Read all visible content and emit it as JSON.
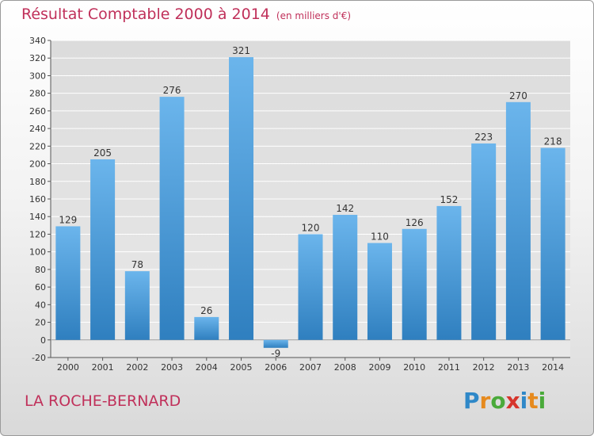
{
  "title": "Résultat Comptable 2000 à 2014",
  "unit": "(en milliers d'€)",
  "place": "LA ROCHE-BERNARD",
  "logo": {
    "text": "Proxiti",
    "letters": [
      "P",
      "r",
      "o",
      "x",
      "i",
      "t",
      "i"
    ],
    "colors": [
      "#2f88c8",
      "#e68a1e",
      "#4aaa3a",
      "#d6352c",
      "#2f88c8",
      "#e68a1e",
      "#4aaa3a"
    ]
  },
  "colors": {
    "title": "#c0305a",
    "bar_top": "#6bb5ec",
    "bar_bottom": "#2f7fbf",
    "grid": "#ffffff",
    "axis": "#555555",
    "text": "#333333"
  },
  "chart_data": {
    "type": "bar",
    "title": "Résultat Comptable 2000 à 2014",
    "ylabel": "(en milliers d'€)",
    "categories": [
      "2000",
      "2001",
      "2002",
      "2003",
      "2004",
      "2005",
      "2006",
      "2007",
      "2008",
      "2009",
      "2010",
      "2011",
      "2012",
      "2013",
      "2014"
    ],
    "values": [
      129,
      205,
      78,
      276,
      26,
      321,
      -9,
      120,
      142,
      110,
      126,
      152,
      223,
      270,
      218
    ],
    "value_labels": [
      "129",
      "205",
      "78",
      "276",
      "26",
      "321",
      "-9",
      "120",
      "142",
      "110",
      "126",
      "152",
      "223",
      "270",
      "218"
    ],
    "ylim": [
      -20,
      340
    ],
    "yticks": [
      -20,
      0,
      20,
      40,
      60,
      80,
      100,
      120,
      140,
      160,
      180,
      200,
      220,
      240,
      260,
      280,
      300,
      320,
      340
    ],
    "ytick_labels": [
      "-20",
      "0",
      "20",
      "40",
      "60",
      "80",
      "100",
      "120",
      "140",
      "160",
      "180",
      "200",
      "220",
      "240",
      "260",
      "280",
      "300",
      "320",
      "340"
    ],
    "grid": true,
    "legend": "none"
  }
}
